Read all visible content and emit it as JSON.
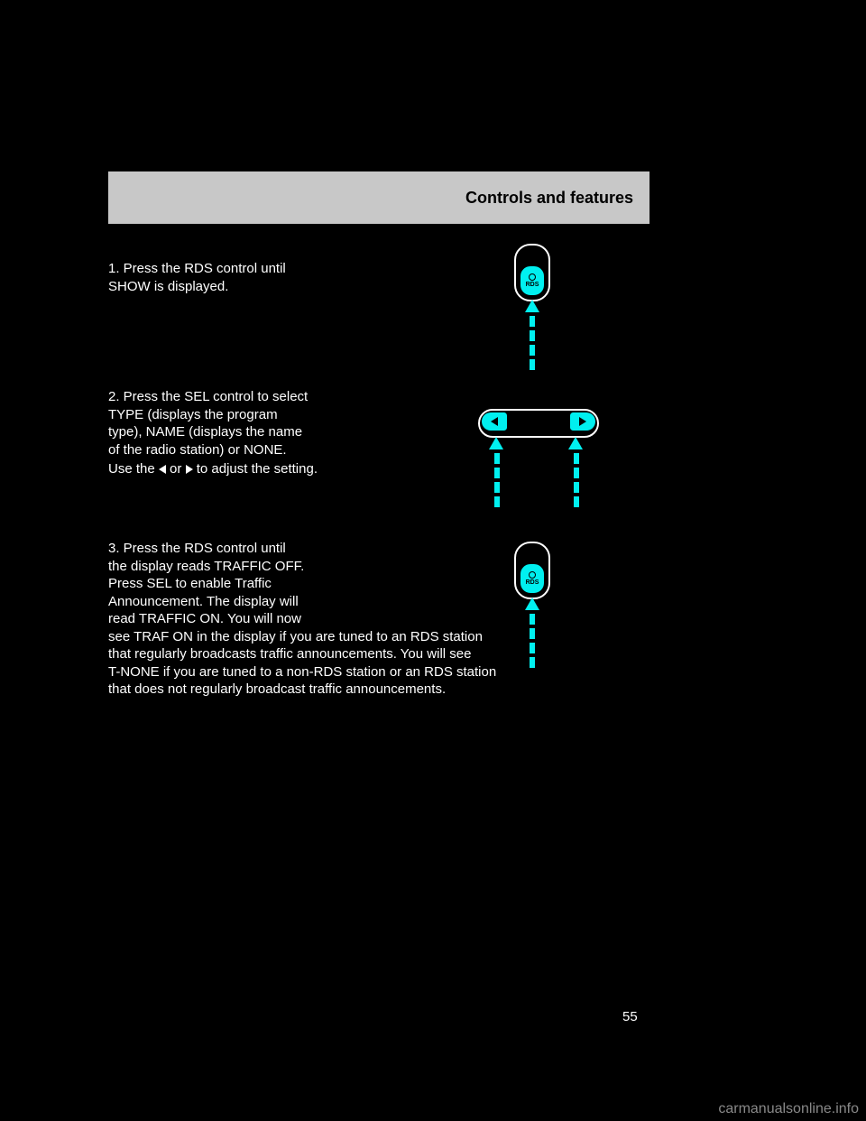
{
  "header": {
    "title": "Controls and features"
  },
  "steps": {
    "s1": "1. Press the RDS control until\nSHOW is displayed.",
    "s2a": "2. Press the SEL control to select\nTYPE (displays the program\ntype), NAME (displays the name\nof the radio station) or NONE.",
    "s2b_prefix": "Use the",
    "s2b_mid": "or",
    "s2b_suffix": "to adjust the\nsetting.",
    "s3": "3. Press the RDS control until\nthe display reads TRAFFIC OFF.\nPress SEL to enable Traffic\nAnnouncement. The display will\nread TRAFFIC ON. You will now\nsee TRAF ON in the display if you are tuned to an RDS station\nthat regularly broadcasts traffic announcements. You will see\nT-NONE if you are tuned to a non-RDS station or an RDS station\nthat does not regularly broadcast traffic announcements."
  },
  "buttons": {
    "rds": "RDS"
  },
  "colors": {
    "accent": "#00f0f0",
    "background": "#000000",
    "header_bg": "#c8c8c8",
    "text": "#ffffff"
  },
  "page_number": "55",
  "watermark": "carmanualsonline.info"
}
